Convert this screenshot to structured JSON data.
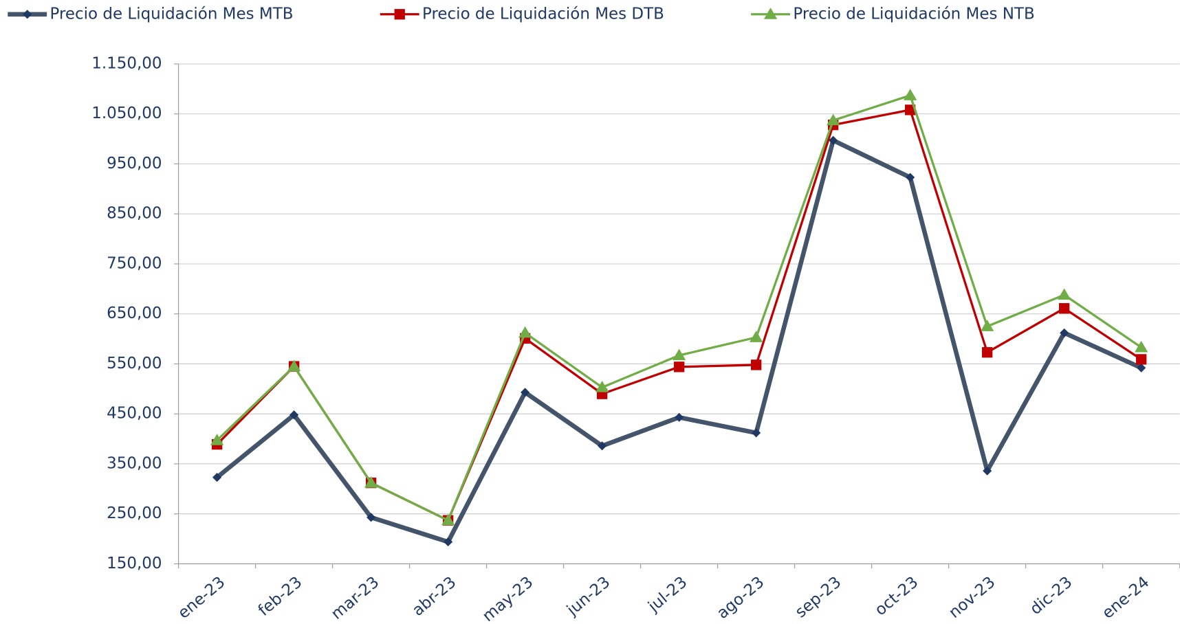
{
  "chart_data": {
    "type": "line",
    "categories": [
      "ene-23",
      "feb-23",
      "mar-23",
      "abr-23",
      "may-23",
      "jun-23",
      "jul-23",
      "ago-23",
      "sep-23",
      "oct-23",
      "nov-23",
      "dic-23",
      "ene-24"
    ],
    "series": [
      {
        "name": "Precio de Liquidación Mes MTB",
        "color": "#44546a",
        "marker_color": "#1f3864",
        "marker": "diamond",
        "values": [
          323,
          448,
          243,
          194,
          493,
          386,
          443,
          412,
          997,
          923,
          336,
          612,
          542
        ]
      },
      {
        "name": "Precio de Liquidación Mes DTB",
        "color": "#c00000",
        "marker_color": "#c00000",
        "marker": "square",
        "values": [
          389,
          545,
          312,
          237,
          601,
          490,
          544,
          548,
          1028,
          1058,
          573,
          661,
          559
        ]
      },
      {
        "name": "Precio de Liquidación Mes NTB",
        "color": "#70ad47",
        "marker_color": "#70ad47",
        "marker": "triangle",
        "values": [
          397,
          545,
          312,
          237,
          612,
          503,
          567,
          603,
          1037,
          1087,
          625,
          688,
          583
        ]
      }
    ],
    "ylim": [
      150,
      1150
    ],
    "yticks": [
      {
        "value": 150,
        "label": "150,00"
      },
      {
        "value": 250,
        "label": "250,00"
      },
      {
        "value": 350,
        "label": "350,00"
      },
      {
        "value": 450,
        "label": "450,00"
      },
      {
        "value": 550,
        "label": "550,00"
      },
      {
        "value": 650,
        "label": "650,00"
      },
      {
        "value": 750,
        "label": "750,00"
      },
      {
        "value": 850,
        "label": "850,00"
      },
      {
        "value": 950,
        "label": "950,00"
      },
      {
        "value": 1050,
        "label": "1.050,00"
      },
      {
        "value": 1150,
        "label": "1.150,00"
      }
    ],
    "grid": true,
    "legend": "top"
  }
}
